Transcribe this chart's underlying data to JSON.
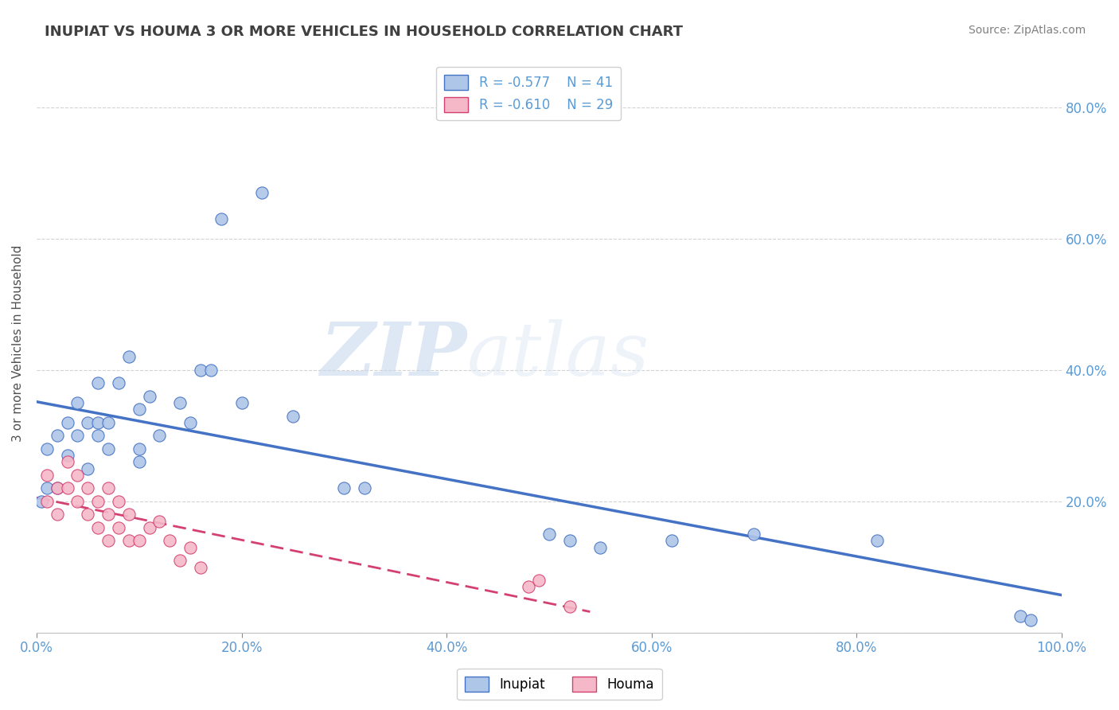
{
  "title": "INUPIAT VS HOUMA 3 OR MORE VEHICLES IN HOUSEHOLD CORRELATION CHART",
  "source": "Source: ZipAtlas.com",
  "ylabel": "3 or more Vehicles in Household",
  "xlim": [
    0.0,
    1.0
  ],
  "ylim": [
    0.0,
    0.88
  ],
  "xticks": [
    0.0,
    0.2,
    0.4,
    0.6,
    0.8,
    1.0
  ],
  "yticks_left": [
    0.0,
    0.2,
    0.4,
    0.6,
    0.8
  ],
  "yticks_right": [
    0.2,
    0.4,
    0.6,
    0.8
  ],
  "xticklabels": [
    "0.0%",
    "20.0%",
    "40.0%",
    "60.0%",
    "80.0%",
    "100.0%"
  ],
  "yticklabels_left": [
    "",
    "",
    "",
    "",
    ""
  ],
  "yticklabels_right": [
    "20.0%",
    "40.0%",
    "60.0%",
    "80.0%"
  ],
  "legend_r_inupiat": "R = -0.577",
  "legend_n_inupiat": "N = 41",
  "legend_r_houma": "R = -0.610",
  "legend_n_houma": "N = 29",
  "inupiat_color": "#aec6e8",
  "houma_color": "#f4b8c8",
  "inupiat_line_color": "#4472c4",
  "houma_line_color": "#d44070",
  "background_color": "#ffffff",
  "watermark_zip": "ZIP",
  "watermark_atlas": "atlas",
  "inupiat_x": [
    0.005,
    0.01,
    0.01,
    0.02,
    0.02,
    0.03,
    0.03,
    0.04,
    0.04,
    0.05,
    0.05,
    0.06,
    0.06,
    0.06,
    0.07,
    0.07,
    0.08,
    0.09,
    0.1,
    0.1,
    0.1,
    0.11,
    0.12,
    0.14,
    0.15,
    0.16,
    0.17,
    0.18,
    0.2,
    0.22,
    0.25,
    0.3,
    0.32,
    0.5,
    0.52,
    0.55,
    0.62,
    0.7,
    0.82,
    0.96,
    0.97
  ],
  "inupiat_y": [
    0.2,
    0.28,
    0.22,
    0.3,
    0.22,
    0.27,
    0.32,
    0.3,
    0.35,
    0.32,
    0.25,
    0.38,
    0.32,
    0.3,
    0.28,
    0.32,
    0.38,
    0.42,
    0.34,
    0.28,
    0.26,
    0.36,
    0.3,
    0.35,
    0.32,
    0.4,
    0.4,
    0.63,
    0.35,
    0.67,
    0.33,
    0.22,
    0.22,
    0.15,
    0.14,
    0.13,
    0.14,
    0.15,
    0.14,
    0.025,
    0.02
  ],
  "houma_x": [
    0.01,
    0.01,
    0.02,
    0.02,
    0.03,
    0.03,
    0.04,
    0.04,
    0.05,
    0.05,
    0.06,
    0.06,
    0.07,
    0.07,
    0.07,
    0.08,
    0.08,
    0.09,
    0.09,
    0.1,
    0.11,
    0.12,
    0.13,
    0.14,
    0.15,
    0.16,
    0.48,
    0.49,
    0.52
  ],
  "houma_y": [
    0.24,
    0.2,
    0.22,
    0.18,
    0.22,
    0.26,
    0.2,
    0.24,
    0.22,
    0.18,
    0.2,
    0.16,
    0.22,
    0.18,
    0.14,
    0.2,
    0.16,
    0.18,
    0.14,
    0.14,
    0.16,
    0.17,
    0.14,
    0.11,
    0.13,
    0.1,
    0.07,
    0.08,
    0.04
  ]
}
